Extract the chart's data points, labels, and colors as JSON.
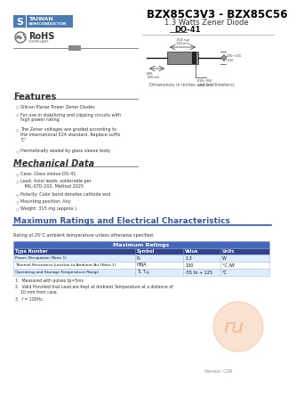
{
  "title": "BZX85C3V3 - BZX85C56",
  "subtitle": "1.3 Watts Zener Diode",
  "package": "DO-41",
  "bg_color": "#ffffff",
  "features_title": "Features",
  "features": [
    "Silicon Planar Power Zener Diodes",
    "For use in stabilizing and clipping circuits with\nhigh power rating",
    "The Zener voltages are graded according to\nthe international E24 standard. Replace suffix\n'C'",
    "Hermetically sealed by glass sleeve body"
  ],
  "mech_title": "Mechanical Data",
  "mech_items": [
    "Case: Glass sleeve DO-41",
    "Lead: Axial leads, solderable per\n   MIL-STD-202, Method 2025",
    "Polarity: Color band denotes cathode end",
    "Mounting position: Any",
    "Weight: 315 mg (approx.)"
  ],
  "max_ratings_title": "Maximum Ratings and Electrical Characteristics",
  "rating_note": "Rating at 25°C ambient temperature unless otherwise specified.",
  "col_headers": [
    "Type Number",
    "Symbol",
    "Value",
    "Units"
  ],
  "rows": [
    [
      "Power Dissipation (Note 1)",
      "Pₓ",
      "1.3",
      "W"
    ],
    [
      "Thermal Resistance Junction to Ambient Air (Note 1)",
      "HθJA",
      "130",
      "°C /W"
    ],
    [
      "Operating and Storage Temperature Range",
      "Tₗ, Tₓⱼⱼ",
      "-55 to + 125",
      "°C"
    ]
  ],
  "notes": [
    "1.  Measured with pulses tp=5ms",
    "2.  Valid Provided that Lead are Kept at Ambient Temperature at a distance of\n    10 mm from case.",
    "3.  f = 100Hz."
  ],
  "version": "Version: C08",
  "taiwan_semi_color": "#4a7cb5",
  "header_blue": "#3355aa",
  "table_header_blue": "#4466bb",
  "table_col_header": "#334488",
  "table_row1_color": "#ddeeff",
  "table_row2_color": "#ffffff",
  "orange_color": "#e87020"
}
